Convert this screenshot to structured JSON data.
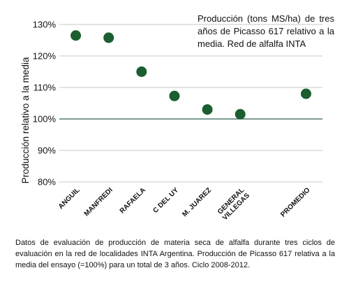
{
  "chart_data": {
    "type": "scatter",
    "title": "Producción (tons MS/ha) de tres años de Picasso 617 relativo a la media. Red de alfalfa INTA",
    "ylabel": "Producción relativo a la media",
    "ylim": [
      80,
      130
    ],
    "yticks": [
      "80%",
      "90%",
      "100%",
      "110%",
      "120%",
      "130%"
    ],
    "reference_line": 100,
    "grid": true,
    "marker_color": "#1b5e2f",
    "categories": [
      "ANGUIL",
      "MANFREDI",
      "RAFAELA",
      "C DEL UY",
      "M. JUAREZ",
      "GENERAL VILLEGAS",
      "",
      "PROMEDIO"
    ],
    "category_label_lines": [
      [
        "ANGUIL"
      ],
      [
        "MANFREDI"
      ],
      [
        "RAFAELA"
      ],
      [
        "C DEL UY"
      ],
      [
        "M. JUAREZ"
      ],
      [
        "GENERAL",
        "VILLEGAS"
      ],
      [],
      [
        "PROMEDIO"
      ]
    ],
    "values": [
      126.5,
      125.8,
      115.0,
      107.3,
      103.0,
      101.5,
      null,
      108.0
    ]
  },
  "caption": "Datos de evaluación de producción de materia seca de alfalfa durante tres ciclos de evaluación en la red de localidades INTA Argentina. Producción de Picasso 617 relativa a la media del ensayo (=100%) para un total de 3 años. Ciclo 2008-2012."
}
